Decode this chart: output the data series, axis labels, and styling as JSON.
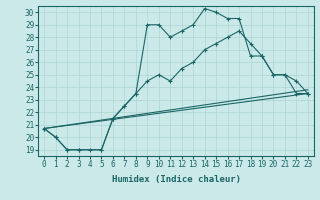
{
  "title": "",
  "xlabel": "Humidex (Indice chaleur)",
  "bg_color": "#cce9e9",
  "grid_color": "#aad4d4",
  "line_color": "#1a6666",
  "xlim": [
    -0.5,
    23.5
  ],
  "ylim": [
    18.5,
    30.5
  ],
  "yticks": [
    19,
    20,
    21,
    22,
    23,
    24,
    25,
    26,
    27,
    28,
    29,
    30
  ],
  "xticks": [
    0,
    1,
    2,
    3,
    4,
    5,
    6,
    7,
    8,
    9,
    10,
    11,
    12,
    13,
    14,
    15,
    16,
    17,
    18,
    19,
    20,
    21,
    22,
    23
  ],
  "line1_x": [
    0,
    1,
    2,
    3,
    4,
    5,
    6,
    7,
    8,
    9,
    10,
    11,
    12,
    13,
    14,
    15,
    16,
    17,
    18,
    19,
    20,
    21,
    22,
    23
  ],
  "line1_y": [
    20.7,
    20.0,
    19.0,
    19.0,
    19.0,
    19.0,
    21.5,
    22.5,
    23.5,
    29.0,
    29.0,
    28.0,
    28.5,
    29.0,
    30.3,
    30.0,
    29.5,
    29.5,
    26.5,
    26.5,
    25.0,
    25.0,
    24.5,
    23.5
  ],
  "line2_x": [
    0,
    1,
    2,
    3,
    5,
    6,
    7,
    8,
    9,
    10,
    11,
    12,
    13,
    14,
    15,
    16,
    17,
    18,
    19,
    20,
    21,
    22,
    23
  ],
  "line2_y": [
    20.7,
    20.0,
    19.0,
    19.0,
    19.0,
    21.5,
    22.5,
    23.5,
    24.5,
    25.0,
    24.5,
    25.5,
    26.0,
    27.0,
    27.5,
    28.0,
    28.5,
    27.5,
    26.5,
    25.0,
    25.0,
    23.5,
    23.5
  ],
  "line3_x": [
    0,
    23
  ],
  "line3_y": [
    20.7,
    23.5
  ],
  "line4_x": [
    0,
    23
  ],
  "line4_y": [
    20.7,
    23.5
  ]
}
